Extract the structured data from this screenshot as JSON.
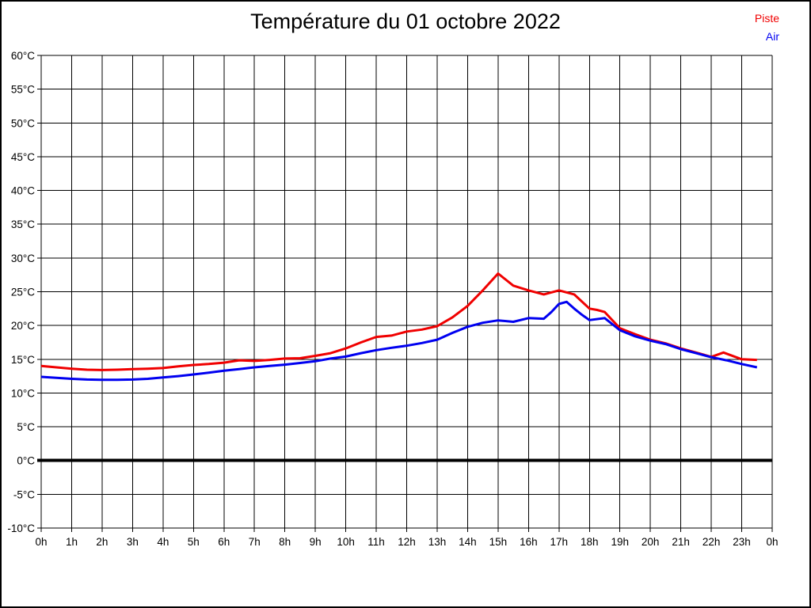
{
  "header": {
    "title": "Température du 01 octobre 2022"
  },
  "legend": {
    "items": [
      {
        "label": "Piste",
        "color": "#f00000"
      },
      {
        "label": "Air",
        "color": "#0000f0"
      }
    ]
  },
  "chart_data": {
    "type": "line",
    "title": "Température du 01 octobre 2022",
    "xlabel": "",
    "ylabel": "",
    "xlim": [
      0,
      24
    ],
    "ylim": [
      -10,
      60
    ],
    "grid": true,
    "grid_color": "#000000",
    "zero_line_value": 0,
    "x_ticks": [
      0,
      1,
      2,
      3,
      4,
      5,
      6,
      7,
      8,
      9,
      10,
      11,
      12,
      13,
      14,
      15,
      16,
      17,
      18,
      19,
      20,
      21,
      22,
      23,
      24
    ],
    "x_tick_labels": [
      "0h",
      "1h",
      "2h",
      "3h",
      "4h",
      "5h",
      "6h",
      "7h",
      "8h",
      "9h",
      "10h",
      "11h",
      "12h",
      "13h",
      "14h",
      "15h",
      "16h",
      "17h",
      "18h",
      "19h",
      "20h",
      "21h",
      "22h",
      "23h",
      "0h"
    ],
    "y_ticks": [
      60,
      55,
      50,
      45,
      40,
      35,
      30,
      25,
      20,
      15,
      10,
      5,
      0,
      -5,
      -10
    ],
    "y_tick_labels": [
      "60°C",
      "55°C",
      "50°C",
      "45°C",
      "40°C",
      "35°C",
      "30°C",
      "25°C",
      "20°C",
      "15°C",
      "10°C",
      "5°C",
      "0°C",
      "-5°C",
      "-10°C"
    ],
    "legend_position": "top-right",
    "series": [
      {
        "name": "Piste",
        "color": "#f00000",
        "x": [
          0,
          0.5,
          1,
          1.5,
          2,
          2.5,
          3,
          3.5,
          4,
          4.5,
          5,
          5.5,
          6,
          6.5,
          7,
          7.5,
          8,
          8.5,
          9,
          9.5,
          10,
          10.5,
          11,
          11.5,
          12,
          12.5,
          13,
          13.5,
          14,
          14.5,
          15,
          15.5,
          16,
          16.5,
          17,
          17.5,
          18,
          18.25,
          18.5,
          19,
          19.5,
          20,
          20.5,
          21,
          21.5,
          22,
          22.4,
          23,
          23.5
        ],
        "y": [
          14.0,
          13.8,
          13.6,
          13.45,
          13.4,
          13.45,
          13.55,
          13.6,
          13.7,
          13.95,
          14.15,
          14.3,
          14.5,
          14.85,
          14.75,
          14.9,
          15.1,
          15.15,
          15.5,
          15.9,
          16.6,
          17.5,
          18.3,
          18.5,
          19.1,
          19.4,
          19.9,
          21.2,
          22.9,
          25.2,
          27.7,
          25.9,
          25.2,
          24.6,
          25.2,
          24.6,
          22.5,
          22.3,
          22.0,
          19.6,
          18.7,
          17.9,
          17.35,
          16.6,
          16.0,
          15.35,
          16.0,
          15.0,
          14.9
        ]
      },
      {
        "name": "Air",
        "color": "#0000f0",
        "x": [
          0,
          0.5,
          1,
          1.5,
          2,
          2.5,
          3,
          3.5,
          4,
          4.5,
          5,
          5.5,
          6,
          6.5,
          7,
          7.5,
          8,
          8.5,
          9,
          9.5,
          10,
          10.5,
          11,
          11.5,
          12,
          12.5,
          13,
          13.5,
          14,
          14.5,
          15,
          15.5,
          16,
          16.5,
          16.75,
          17,
          17.25,
          17.5,
          17.75,
          18,
          18.5,
          19,
          19.5,
          20,
          20.5,
          21,
          21.5,
          22,
          22.5,
          23,
          23.5
        ],
        "y": [
          12.4,
          12.25,
          12.1,
          12.0,
          11.95,
          11.95,
          12.0,
          12.1,
          12.3,
          12.5,
          12.75,
          13.0,
          13.3,
          13.55,
          13.8,
          14.0,
          14.2,
          14.45,
          14.7,
          15.1,
          15.4,
          15.9,
          16.35,
          16.7,
          17.0,
          17.4,
          17.9,
          18.9,
          19.8,
          20.4,
          20.75,
          20.55,
          21.1,
          21.0,
          22.0,
          23.2,
          23.5,
          22.5,
          21.6,
          20.8,
          21.1,
          19.3,
          18.4,
          17.75,
          17.25,
          16.5,
          15.9,
          15.3,
          14.85,
          14.3,
          13.8
        ]
      }
    ]
  }
}
